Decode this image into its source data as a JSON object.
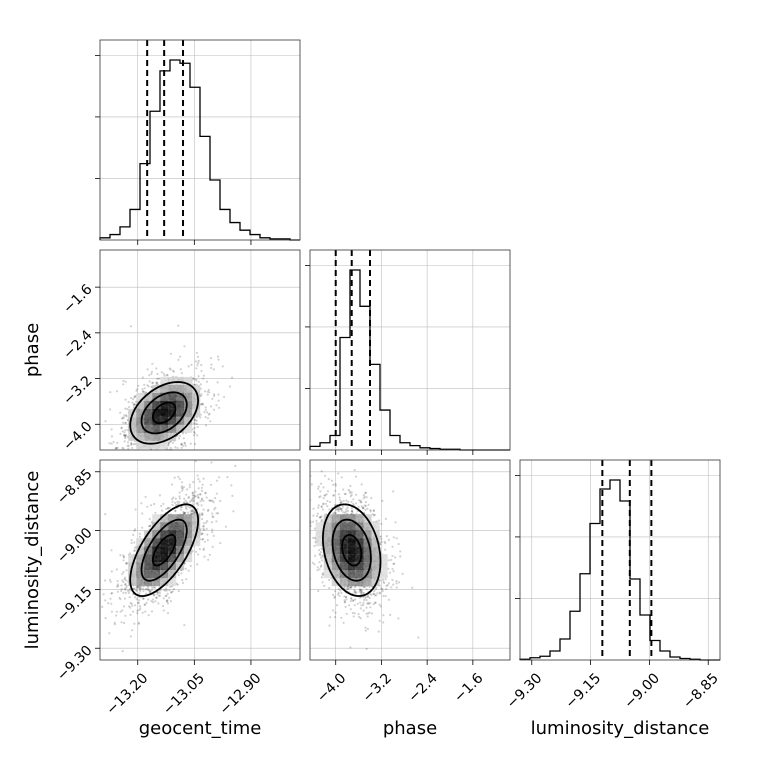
{
  "chart_data": {
    "type": "corner",
    "parameters": [
      "geocent_time",
      "phase",
      "luminosity_distance"
    ],
    "axes": {
      "geocent_time": {
        "range": [
          -13.3,
          -12.77
        ],
        "ticks": [
          -13.2,
          -13.05,
          -12.9
        ],
        "tick_labels": [
          "−13.20",
          "−13.05",
          "−12.90"
        ]
      },
      "phase": {
        "range": [
          -4.45,
          -0.95
        ],
        "ticks": [
          -4.0,
          -3.2,
          -2.4,
          -1.6
        ],
        "tick_labels": [
          "−4.0",
          "−3.2",
          "−2.4",
          "−1.6"
        ]
      },
      "luminosity_distance": {
        "range": [
          -9.33,
          -8.82
        ],
        "ticks": [
          -9.3,
          -9.15,
          -9.0,
          -8.85
        ],
        "tick_labels": [
          "−9.30",
          "−9.15",
          "−9.00",
          "−8.85"
        ]
      }
    },
    "histograms": [
      {
        "param": "geocent_time",
        "bins": 20,
        "counts": [
          2,
          5,
          12,
          28,
          70,
          118,
          155,
          165,
          162,
          140,
          95,
          55,
          28,
          16,
          9,
          5,
          2,
          1,
          1,
          0
        ],
        "quantiles": [
          -13.175,
          -13.13,
          -13.08
        ]
      },
      {
        "param": "phase",
        "bins": 20,
        "counts": [
          5,
          10,
          20,
          155,
          248,
          198,
          118,
          55,
          20,
          10,
          6,
          3,
          2,
          1,
          1,
          0,
          0,
          0,
          0,
          0
        ],
        "quantiles": [
          -4.0,
          -3.72,
          -3.4
        ]
      },
      {
        "param": "luminosity_distance",
        "bins": 20,
        "counts": [
          1,
          3,
          5,
          12,
          28,
          65,
          115,
          182,
          228,
          240,
          212,
          108,
          60,
          26,
          12,
          4,
          2,
          1,
          0,
          0
        ],
        "quantiles": [
          -9.12,
          -9.05,
          -8.995
        ]
      }
    ],
    "pairs": [
      {
        "x": "geocent_time",
        "y": "phase",
        "center": [
          -13.13,
          -3.8
        ],
        "sd": [
          0.05,
          0.3
        ],
        "corr": 0.4
      },
      {
        "x": "geocent_time",
        "y": "luminosity_distance",
        "center": [
          -13.13,
          -9.05
        ],
        "sd": [
          0.05,
          0.065
        ],
        "corr": 0.65
      },
      {
        "x": "phase",
        "y": "luminosity_distance",
        "center": [
          -3.72,
          -9.05
        ],
        "sd": [
          0.28,
          0.065
        ],
        "corr": -0.25
      }
    ],
    "grid": true
  }
}
